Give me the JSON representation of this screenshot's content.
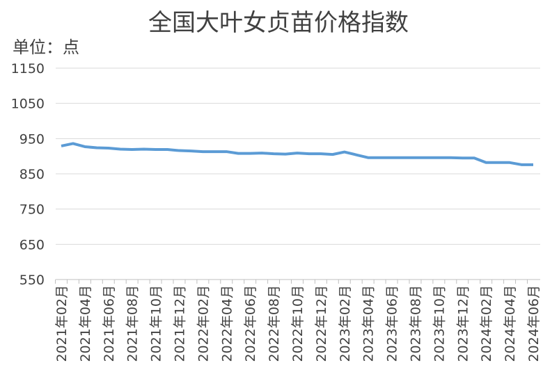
{
  "chart_data": {
    "type": "line",
    "title": "全国大叶女贞苗价格指数",
    "subtitle": "单位：点",
    "categories": [
      "2021年02月",
      null,
      "2021年04月",
      null,
      "2021年06月",
      null,
      "2021年08月",
      null,
      "2021年10月",
      null,
      "2021年12月",
      null,
      "2022年02月",
      null,
      "2022年04月",
      null,
      "2022年06月",
      null,
      "2022年08月",
      null,
      "2022年10月",
      null,
      "2022年12月",
      null,
      "2023年02月",
      null,
      "2023年04月",
      null,
      "2023年06月",
      null,
      "2023年08月",
      null,
      "2023年10月",
      null,
      "2023年12月",
      null,
      "2024年02月",
      null,
      "2024年04月",
      null,
      "2024年06月"
    ],
    "series": [
      {
        "name": "全国大叶女贞苗价格指数",
        "color": "#5b9bd5",
        "values": [
          929,
          936,
          927,
          924,
          923,
          920,
          919,
          920,
          919,
          919,
          916,
          915,
          913,
          913,
          913,
          908,
          908,
          909,
          907,
          906,
          909,
          907,
          907,
          905,
          912,
          904,
          896,
          896,
          896,
          896,
          896,
          896,
          896,
          896,
          895,
          895,
          882,
          882,
          882,
          876,
          876
        ]
      }
    ],
    "ylim": [
      550,
      1150
    ],
    "yticks": [
      550,
      650,
      750,
      850,
      950,
      1050,
      1150
    ],
    "grid": true
  }
}
